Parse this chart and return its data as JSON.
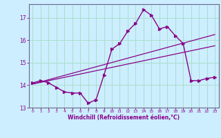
{
  "xlabel": "Windchill (Refroidissement éolien,°C)",
  "bg_color": "#cceeff",
  "line_color": "#880088",
  "grid_color": "#aaddcc",
  "xlim": [
    -0.5,
    23.5
  ],
  "ylim": [
    13.0,
    17.6
  ],
  "xticks": [
    0,
    1,
    2,
    3,
    4,
    5,
    6,
    7,
    8,
    9,
    10,
    11,
    12,
    13,
    14,
    15,
    16,
    17,
    18,
    19,
    20,
    21,
    22,
    23
  ],
  "yticks": [
    13,
    14,
    15,
    16,
    17
  ],
  "main_line_x": [
    0,
    1,
    2,
    3,
    4,
    5,
    6,
    7,
    8,
    9,
    10,
    11,
    12,
    13,
    14,
    15,
    16,
    17,
    18,
    19,
    20,
    21,
    22,
    23
  ],
  "main_line_y": [
    14.1,
    14.2,
    14.1,
    13.9,
    13.7,
    13.65,
    13.65,
    13.2,
    13.35,
    14.45,
    15.6,
    15.85,
    16.4,
    16.75,
    17.35,
    17.1,
    16.5,
    16.6,
    16.2,
    15.85,
    14.2,
    14.2,
    14.3,
    14.35
  ],
  "reg_line1_x": [
    0,
    23
  ],
  "reg_line1_y": [
    14.05,
    16.25
  ],
  "reg_line2_x": [
    0,
    23
  ],
  "reg_line2_y": [
    14.05,
    15.75
  ]
}
